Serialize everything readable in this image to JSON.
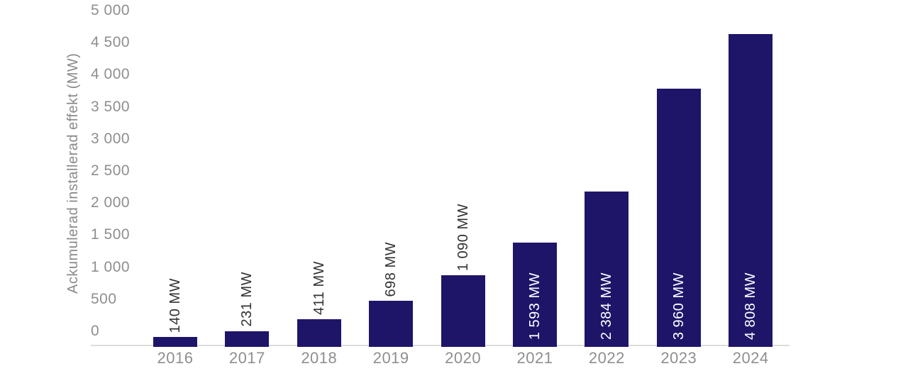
{
  "chart_data": {
    "type": "bar",
    "categories": [
      "2016",
      "2017",
      "2018",
      "2019",
      "2020",
      "2021",
      "2022",
      "2023",
      "2024"
    ],
    "values": [
      140,
      231,
      411,
      698,
      1090,
      1593,
      2384,
      3960,
      4808
    ],
    "bar_labels": [
      "140 MW",
      "231 MW",
      "411 MW",
      "698 MW",
      "1 090 MW",
      "1 593 MW",
      "2 384 MW",
      "3 960 MW",
      "4 808 MW"
    ],
    "label_inside": [
      false,
      false,
      false,
      false,
      false,
      true,
      true,
      true,
      true
    ],
    "title": "",
    "xlabel": "",
    "ylabel": "Ackumulerad installerad effekt (MW)",
    "ylim": [
      0,
      5000
    ],
    "ytick_interval": 500,
    "ytick_labels": [
      "0",
      "500",
      "1 000",
      "1 500",
      "2 000",
      "2 500",
      "3 000",
      "3 500",
      "4 000",
      "4 500",
      "5 000"
    ],
    "grid": false,
    "legend": "none",
    "colors": {
      "bar": "#1e1569",
      "axis_text": "#8e8e8e",
      "bar_label_dark": "#333333",
      "bar_label_light": "#ffffff",
      "axis_line": "#dcdcdc",
      "background": "#ffffff"
    }
  }
}
